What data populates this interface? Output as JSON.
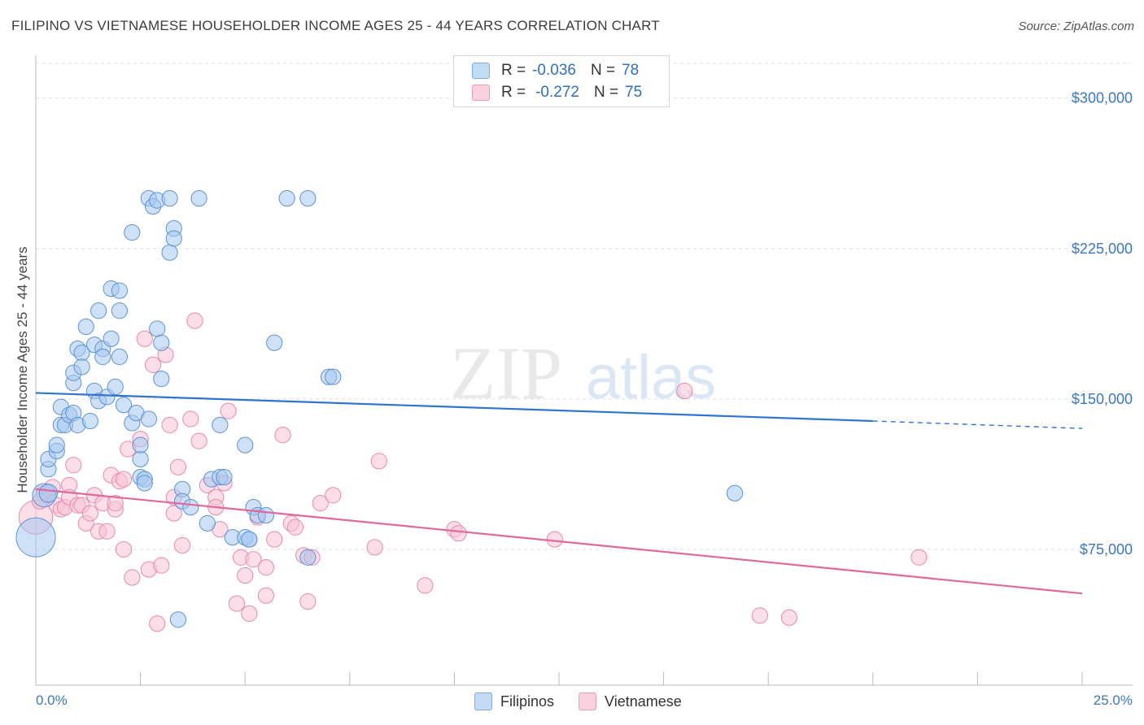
{
  "header": {
    "title": "FILIPINO VS VIETNAMESE HOUSEHOLDER INCOME AGES 25 - 44 YEARS CORRELATION CHART",
    "source": "Source: ZipAtlas.com"
  },
  "watermark": {
    "zip": "ZIP",
    "atlas": "atlas"
  },
  "legend": {
    "r_label": "R =",
    "n_label": "N =",
    "rows": [
      {
        "r": "-0.036",
        "n": "78",
        "color": "#a8c8f0"
      },
      {
        "r": "-0.272",
        "n": "75",
        "color": "#f5b8cc"
      }
    ]
  },
  "series_legend": [
    {
      "name": "Filipinos",
      "color": "#a8c8f0"
    },
    {
      "name": "Vietnamese",
      "color": "#f5b8cc"
    }
  ],
  "colors": {
    "filipino_fill": "#a8c8f0",
    "filipino_stroke": "#5b93d8",
    "filipino_line": "#2f74d0",
    "vietnamese_fill": "#f7c2d3",
    "vietnamese_stroke": "#e88aab",
    "vietnamese_line": "#e0689a",
    "grid": "#e0e0e0",
    "tick_label": "#3a78c4"
  },
  "chart_data": {
    "type": "scatter",
    "title": "FILIPINO VS VIETNAMESE HOUSEHOLDER INCOME AGES 25 - 44 YEARS CORRELATION CHART",
    "xlabel": "",
    "ylabel": "Householder Income Ages 25 - 44 years",
    "x_tick_labels": [
      "0.0%",
      "25.0%"
    ],
    "y_ticks": [
      75000,
      150000,
      225000,
      300000
    ],
    "y_tick_labels": [
      "$75,000",
      "$150,000",
      "$225,000",
      "$300,000"
    ],
    "xlim": [
      0,
      25
    ],
    "ylim": [
      0,
      310000
    ],
    "grid": true,
    "series": [
      {
        "name": "Filipinos",
        "r": -0.036,
        "n": 78,
        "trend": {
          "x0": 0,
          "y0": 153000,
          "x1": 20,
          "y1": 139000,
          "dash_to_x": 25,
          "dash_to_y": 135300
        },
        "points": [
          [
            0.0,
            81000,
            30
          ],
          [
            0.2,
            102000,
            18
          ],
          [
            0.3,
            103000,
            14
          ],
          [
            0.3,
            115000,
            12
          ],
          [
            0.3,
            120000,
            12
          ],
          [
            0.5,
            124000,
            12
          ],
          [
            0.5,
            127000,
            12
          ],
          [
            0.6,
            146000,
            12
          ],
          [
            0.6,
            137000,
            12
          ],
          [
            0.7,
            137000,
            12
          ],
          [
            0.8,
            142000,
            12
          ],
          [
            0.9,
            158000,
            12
          ],
          [
            0.9,
            163000,
            12
          ],
          [
            0.9,
            143000,
            12
          ],
          [
            1.0,
            175000,
            12
          ],
          [
            1.0,
            137000,
            12
          ],
          [
            1.1,
            173000,
            12
          ],
          [
            1.1,
            166000,
            12
          ],
          [
            1.2,
            186000,
            12
          ],
          [
            1.3,
            139000,
            12
          ],
          [
            1.4,
            177000,
            12
          ],
          [
            1.4,
            154000,
            12
          ],
          [
            1.5,
            149000,
            12
          ],
          [
            1.5,
            194000,
            12
          ],
          [
            1.6,
            175000,
            12
          ],
          [
            1.6,
            171000,
            12
          ],
          [
            1.7,
            151000,
            12
          ],
          [
            1.8,
            180000,
            12
          ],
          [
            1.8,
            205000,
            12
          ],
          [
            1.9,
            156000,
            12
          ],
          [
            2.0,
            194000,
            12
          ],
          [
            2.0,
            171000,
            12
          ],
          [
            2.0,
            204000,
            12
          ],
          [
            2.1,
            147000,
            12
          ],
          [
            2.3,
            233000,
            12
          ],
          [
            2.3,
            138000,
            12
          ],
          [
            2.4,
            143000,
            12
          ],
          [
            2.5,
            120000,
            12
          ],
          [
            2.5,
            111000,
            12
          ],
          [
            2.5,
            127000,
            12
          ],
          [
            2.6,
            110000,
            12
          ],
          [
            2.6,
            108000,
            12
          ],
          [
            2.7,
            140000,
            12
          ],
          [
            2.7,
            250000,
            12
          ],
          [
            2.8,
            246000,
            12
          ],
          [
            2.9,
            249000,
            12
          ],
          [
            2.9,
            185000,
            12
          ],
          [
            3.0,
            160000,
            12
          ],
          [
            3.0,
            178000,
            12
          ],
          [
            3.2,
            223000,
            12
          ],
          [
            3.2,
            250000,
            12
          ],
          [
            3.3,
            235000,
            12
          ],
          [
            3.3,
            230000,
            12
          ],
          [
            3.4,
            40000,
            12
          ],
          [
            3.5,
            105000,
            12
          ],
          [
            3.5,
            99000,
            12
          ],
          [
            3.7,
            96000,
            12
          ],
          [
            3.9,
            250000,
            12
          ],
          [
            4.1,
            88000,
            12
          ],
          [
            4.2,
            110000,
            12
          ],
          [
            4.4,
            137000,
            12
          ],
          [
            4.4,
            111000,
            12
          ],
          [
            4.5,
            111000,
            12
          ],
          [
            4.7,
            81000,
            12
          ],
          [
            5.0,
            127000,
            12
          ],
          [
            5.0,
            81000,
            12
          ],
          [
            5.1,
            80000,
            12
          ],
          [
            5.1,
            80000,
            12
          ],
          [
            5.2,
            96000,
            12
          ],
          [
            5.3,
            92000,
            12
          ],
          [
            5.5,
            92000,
            12
          ],
          [
            5.7,
            178000,
            12
          ],
          [
            6.0,
            250000,
            12
          ],
          [
            6.5,
            250000,
            12
          ],
          [
            6.5,
            71000,
            12
          ],
          [
            7.0,
            161000,
            12
          ],
          [
            7.1,
            161000,
            12
          ],
          [
            16.7,
            103000,
            12
          ]
        ]
      },
      {
        "name": "Vietnamese",
        "r": -0.272,
        "n": 75,
        "trend": {
          "x0": 0,
          "y0": 105000,
          "x1": 25,
          "y1": 53000
        },
        "points": [
          [
            0.0,
            91000,
            26
          ],
          [
            0.2,
            103000,
            12
          ],
          [
            0.3,
            102000,
            12
          ],
          [
            0.4,
            106000,
            12
          ],
          [
            0.5,
            97000,
            12
          ],
          [
            0.6,
            95000,
            12
          ],
          [
            0.7,
            96000,
            12
          ],
          [
            0.8,
            107000,
            12
          ],
          [
            0.8,
            101000,
            12
          ],
          [
            0.9,
            117000,
            12
          ],
          [
            1.0,
            97000,
            12
          ],
          [
            1.1,
            97000,
            12
          ],
          [
            1.2,
            88000,
            12
          ],
          [
            1.3,
            93000,
            12
          ],
          [
            1.4,
            102000,
            12
          ],
          [
            1.5,
            84000,
            12
          ],
          [
            1.6,
            98000,
            12
          ],
          [
            1.7,
            84000,
            12
          ],
          [
            1.8,
            112000,
            12
          ],
          [
            1.9,
            95000,
            12
          ],
          [
            2.0,
            109000,
            12
          ],
          [
            2.1,
            110000,
            12
          ],
          [
            2.1,
            75000,
            12
          ],
          [
            2.2,
            125000,
            12
          ],
          [
            2.3,
            61000,
            12
          ],
          [
            2.5,
            130000,
            12
          ],
          [
            2.6,
            180000,
            12
          ],
          [
            2.7,
            65000,
            12
          ],
          [
            2.8,
            167000,
            12
          ],
          [
            2.9,
            38000,
            12
          ],
          [
            3.0,
            67000,
            12
          ],
          [
            3.1,
            172000,
            12
          ],
          [
            3.2,
            137000,
            12
          ],
          [
            3.3,
            101000,
            12
          ],
          [
            3.3,
            93000,
            12
          ],
          [
            3.4,
            116000,
            12
          ],
          [
            3.5,
            77000,
            12
          ],
          [
            3.7,
            140000,
            12
          ],
          [
            3.8,
            189000,
            12
          ],
          [
            3.9,
            129000,
            12
          ],
          [
            4.1,
            107000,
            12
          ],
          [
            4.3,
            101000,
            12
          ],
          [
            4.3,
            96000,
            12
          ],
          [
            4.4,
            85000,
            12
          ],
          [
            4.5,
            108000,
            12
          ],
          [
            4.6,
            144000,
            12
          ],
          [
            4.8,
            48000,
            12
          ],
          [
            4.9,
            71000,
            12
          ],
          [
            5.0,
            62000,
            12
          ],
          [
            5.1,
            43000,
            12
          ],
          [
            5.2,
            70000,
            12
          ],
          [
            5.3,
            91000,
            12
          ],
          [
            5.5,
            66000,
            12
          ],
          [
            5.5,
            52000,
            12
          ],
          [
            5.7,
            80000,
            12
          ],
          [
            5.9,
            132000,
            12
          ],
          [
            6.1,
            88000,
            12
          ],
          [
            6.2,
            86000,
            12
          ],
          [
            6.4,
            72000,
            12
          ],
          [
            6.5,
            49000,
            12
          ],
          [
            6.6,
            71000,
            12
          ],
          [
            6.8,
            98000,
            12
          ],
          [
            7.1,
            102000,
            12
          ],
          [
            8.1,
            76000,
            12
          ],
          [
            8.2,
            119000,
            12
          ],
          [
            9.3,
            57000,
            12
          ],
          [
            10.0,
            85000,
            12
          ],
          [
            10.1,
            83000,
            12
          ],
          [
            12.4,
            80000,
            12
          ],
          [
            15.5,
            154000,
            12
          ],
          [
            17.3,
            42000,
            12
          ],
          [
            18.0,
            41000,
            12
          ],
          [
            21.1,
            71000,
            12
          ],
          [
            0.1,
            99000,
            12
          ],
          [
            1.9,
            98000,
            12
          ]
        ]
      }
    ]
  }
}
